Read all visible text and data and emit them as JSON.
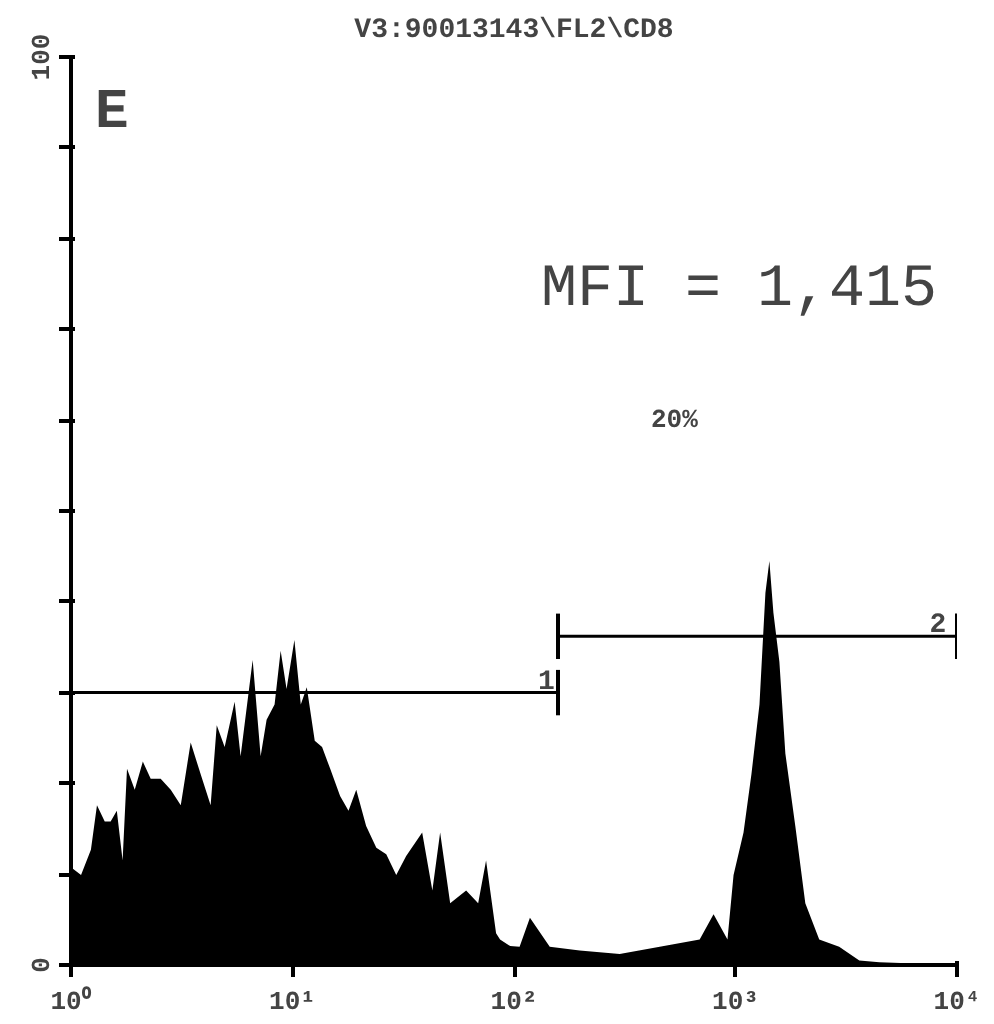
{
  "chart_data": {
    "type": "area",
    "title": "V3:90013143\\FL2\\CD8",
    "log": "x",
    "grid": false,
    "xlim": [
      1,
      10000
    ],
    "ylim": [
      0,
      100
    ],
    "xticks": [
      {
        "value": 1,
        "label": "10⁰"
      },
      {
        "value": 10,
        "label": "10¹"
      },
      {
        "value": 100,
        "label": "10²"
      },
      {
        "value": 1000,
        "label": "10³"
      },
      {
        "value": 10000,
        "label": "10⁴"
      }
    ],
    "yticks": [
      0,
      {
        "value": 10,
        "label": null
      },
      {
        "value": 20,
        "label": null
      },
      {
        "value": 30,
        "label": null
      },
      {
        "value": 40,
        "label": null
      },
      {
        "value": 50,
        "label": null
      },
      {
        "value": 60,
        "label": null
      },
      {
        "value": 70,
        "label": null
      },
      {
        "value": 80,
        "label": null
      },
      {
        "value": 90,
        "label": null
      },
      100
    ],
    "series": [
      {
        "color": "#000000",
        "x": [
          1,
          1.02,
          1.11,
          1.23,
          1.31,
          1.42,
          1.51,
          1.61,
          1.71,
          1.79,
          1.94,
          2.11,
          2.29,
          2.54,
          2.82,
          3.13,
          3.47,
          3.85,
          4.27,
          4.55,
          4.94,
          5.48,
          5.83,
          6.61,
          7.18,
          7.64,
          8.3,
          8.84,
          9.4,
          10.2,
          10.9,
          11.6,
          12.6,
          13.6,
          14.8,
          16.4,
          17.9,
          19.4,
          21.5,
          23.9,
          26.5,
          29.4,
          32.6,
          38.5,
          42.8,
          46.4,
          51.5,
          60.8,
          68.9,
          74.8,
          83,
          86.5,
          96,
          106,
          118,
          145,
          198,
          300,
          455,
          689,
          796,
          920,
          980,
          1087,
          1180,
          1283,
          1365,
          1422,
          1483,
          1578,
          1679,
          1862,
          2066,
          2388,
          2938,
          3622,
          4457,
          10000
        ],
        "values": [
          10.6,
          10.6,
          9.9,
          12.7,
          17.6,
          15.8,
          15.8,
          17,
          11.5,
          21.6,
          19.3,
          22.4,
          20.5,
          20.5,
          19.3,
          17.6,
          24.5,
          21,
          17.6,
          26.4,
          24,
          29,
          23,
          33.6,
          23,
          27,
          28.7,
          34.6,
          30.4,
          35.8,
          28.7,
          30.6,
          24.7,
          24,
          21.6,
          18.6,
          17,
          19.3,
          15.3,
          12.9,
          12.2,
          9.9,
          12,
          14.6,
          8.2,
          14.6,
          6.8,
          8.2,
          6.8,
          11.5,
          3.5,
          2.8,
          2.1,
          2,
          5.2,
          2,
          1.6,
          1.2,
          2,
          2.8,
          5.6,
          2.8,
          9.9,
          14.6,
          21,
          28.7,
          41,
          44.5,
          38.8,
          33.4,
          23.3,
          15.3,
          6.8,
          2.8,
          2,
          0.5,
          0.3,
          0
        ]
      },
      {
        "type": "line",
        "color": "#000000",
        "x": [
          1,
          158
        ],
        "values": [
          30,
          30
        ]
      },
      {
        "type": "line",
        "color": "#000000",
        "x": [
          158,
          10000
        ],
        "values": [
          36.2,
          36.2
        ]
      }
    ],
    "annotations": [
      "E",
      "MFI = 1,415",
      "20%",
      {
        "text": "1",
        "x": 140,
        "y": 30
      },
      {
        "text": "2",
        "x": 8200,
        "y": 36.2
      }
    ]
  }
}
